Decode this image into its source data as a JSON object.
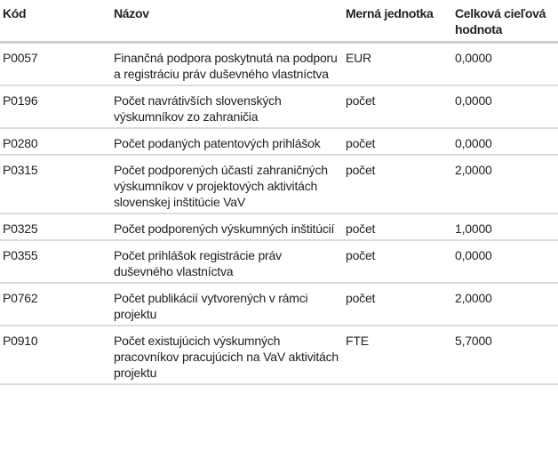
{
  "table": {
    "headers": [
      "Kód",
      "Názov",
      "Merná jednotka",
      "Celková cieľová hodnota"
    ],
    "rows": [
      [
        "P0057",
        "Finančná podpora poskytnutá na podporu a registráciu práv duševného vlastníctva",
        "EUR",
        "0,0000"
      ],
      [
        "P0196",
        "Počet navrátivších slovenských výskumníkov zo zahraničia",
        "počet",
        "0,0000"
      ],
      [
        "P0280",
        "Počet podaných patentových prihlášok",
        "počet",
        "0,0000"
      ],
      [
        "P0315",
        "Počet podporených účastí zahraničných výskumníkov v projektových aktivitách slovenskej inštitúcie VaV",
        "počet",
        "2,0000"
      ],
      [
        "P0325",
        "Počet podporených výskumných inštitúcií",
        "počet",
        "1,0000"
      ],
      [
        "P0355",
        "Počet prihlášok registrácie práv duševného vlastníctva",
        "počet",
        "0,0000"
      ],
      [
        "P0762",
        "Počet publikácií vytvorených v rámci projektu",
        "počet",
        "2,0000"
      ],
      [
        "P0910",
        "Počet existujúcich výskumných pracovníkov pracujúcich na VaV aktivitách projektu",
        "FTE",
        "5,7000"
      ]
    ]
  }
}
